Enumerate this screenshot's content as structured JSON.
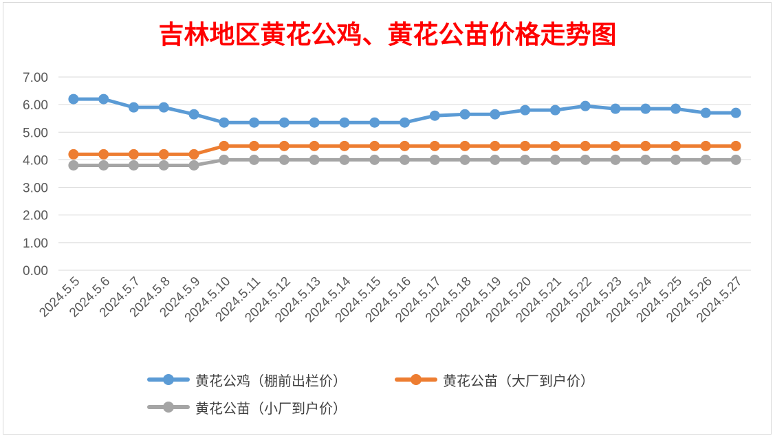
{
  "chart_data": {
    "type": "line",
    "title": "吉林地区黄花公鸡、黄花公苗价格走势图",
    "x": [
      "2024.5.5",
      "2024.5.6",
      "2024.5.7",
      "2024.5.8",
      "2024.5.9",
      "2024.5.10",
      "2024.5.11",
      "2024.5.12",
      "2024.5.13",
      "2024.5.14",
      "2024.5.15",
      "2024.5.16",
      "2024.5.17",
      "2024.5.18",
      "2024.5.19",
      "2024.5.20",
      "2024.5.21",
      "2024.5.22",
      "2024.5.23",
      "2024.5.24",
      "2024.5.25",
      "2024.5.26",
      "2024.5.27"
    ],
    "y_ticks": [
      "0.00",
      "1.00",
      "2.00",
      "3.00",
      "4.00",
      "5.00",
      "6.00",
      "7.00"
    ],
    "ylim": [
      0,
      7
    ],
    "grid": true,
    "legend_position": "bottom",
    "series": [
      {
        "name": "黄花公鸡（棚前出栏价）",
        "color": "#5b9bd5",
        "values": [
          6.2,
          6.2,
          5.9,
          5.9,
          5.65,
          5.35,
          5.35,
          5.35,
          5.35,
          5.35,
          5.35,
          5.35,
          5.6,
          5.65,
          5.65,
          5.8,
          5.8,
          5.95,
          5.85,
          5.85,
          5.85,
          5.7,
          5.7
        ]
      },
      {
        "name": "黄花公苗（大厂到户价）",
        "color": "#ed7d31",
        "values": [
          4.2,
          4.2,
          4.2,
          4.2,
          4.2,
          4.5,
          4.5,
          4.5,
          4.5,
          4.5,
          4.5,
          4.5,
          4.5,
          4.5,
          4.5,
          4.5,
          4.5,
          4.5,
          4.5,
          4.5,
          4.5,
          4.5,
          4.5
        ]
      },
      {
        "name": "黄花公苗（小厂到户价）",
        "color": "#a5a5a5",
        "values": [
          3.8,
          3.8,
          3.8,
          3.8,
          3.8,
          4.0,
          4.0,
          4.0,
          4.0,
          4.0,
          4.0,
          4.0,
          4.0,
          4.0,
          4.0,
          4.0,
          4.0,
          4.0,
          4.0,
          4.0,
          4.0,
          4.0,
          4.0
        ]
      }
    ]
  }
}
